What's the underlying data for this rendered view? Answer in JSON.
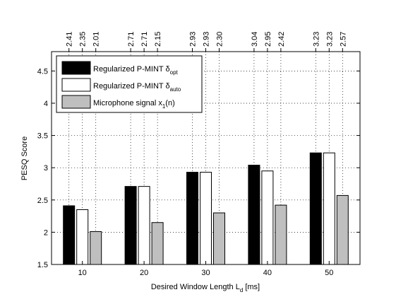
{
  "chart_data": {
    "type": "bar",
    "xlabel": "Desired Window Length L",
    "xlabel_sub": "d",
    "xlabel_unit": " [ms]",
    "ylabel": "PESQ Score",
    "ylim": [
      1.5,
      4.8
    ],
    "yticks": [
      "1.5",
      "2",
      "2.5",
      "3",
      "3.5",
      "4",
      "4.5"
    ],
    "categories": [
      "10",
      "20",
      "30",
      "40",
      "50"
    ],
    "grid": true,
    "legend_position": "top-left",
    "series": [
      {
        "name": "Regularized P-MINT δopt",
        "legend_main": "Regularized P-MINT δ",
        "legend_sub": "opt",
        "color": "#000000",
        "values": [
          2.41,
          2.71,
          2.93,
          3.04,
          3.23
        ],
        "labels": [
          "2.41",
          "2.71",
          "2.93",
          "3.04",
          "3.23"
        ]
      },
      {
        "name": "Regularized P-MINT δauto",
        "legend_main": "Regularized P-MINT δ",
        "legend_sub": "auto",
        "color": "#ffffff",
        "values": [
          2.35,
          2.71,
          2.93,
          2.95,
          3.23
        ],
        "labels": [
          "2.35",
          "2.71",
          "2.93",
          "2.95",
          "3.23"
        ]
      },
      {
        "name": "Microphone signal x1(n)",
        "legend_main": "Microphone signal x",
        "legend_sub": "1",
        "legend_tail": "(n)",
        "color": "#bfbfbf",
        "values": [
          2.01,
          2.15,
          2.3,
          2.42,
          2.57
        ],
        "labels": [
          "2.01",
          "2.15",
          "2.30",
          "2.42",
          "2.57"
        ]
      }
    ]
  }
}
